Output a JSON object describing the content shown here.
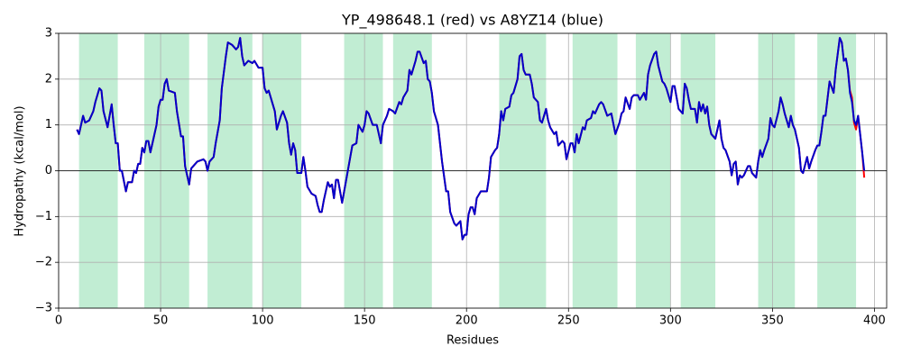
{
  "chart_data": {
    "type": "line",
    "title": "YP_498648.1 (red) vs A8YZ14 (blue)",
    "x_label": "Residues",
    "y_label": "Hydropathy (kcal/mol)",
    "xlim": [
      0,
      406
    ],
    "ylim": [
      -3,
      3
    ],
    "xticks": [
      0,
      50,
      100,
      150,
      200,
      250,
      300,
      350,
      400
    ],
    "yticks": [
      {
        "value": -3,
        "label": "−3"
      },
      {
        "value": -2,
        "label": "−2"
      },
      {
        "value": -1,
        "label": "−1"
      },
      0,
      1,
      2,
      3
    ],
    "grid": true,
    "hline": 0,
    "span_color": "#c1edd3",
    "spans": [
      [
        10,
        29
      ],
      [
        42,
        64
      ],
      [
        73,
        95
      ],
      [
        100,
        119
      ],
      [
        140,
        159
      ],
      [
        164,
        183
      ],
      [
        216,
        239
      ],
      [
        252,
        274
      ],
      [
        283,
        300
      ],
      [
        305,
        322
      ],
      [
        343,
        361
      ],
      [
        372,
        391
      ]
    ],
    "x": [
      9,
      10,
      12,
      13,
      15,
      17,
      18,
      20,
      21,
      22,
      24,
      26,
      27,
      28,
      29,
      30,
      31,
      33,
      34,
      36,
      37,
      38,
      39,
      40,
      41,
      42,
      43,
      44,
      45,
      46,
      48,
      49,
      50,
      51,
      52,
      53,
      54,
      57,
      58,
      60,
      61,
      62,
      64,
      65,
      66,
      68,
      71,
      72,
      73,
      74,
      76,
      77,
      79,
      80,
      82,
      83,
      85,
      87,
      88,
      89,
      90,
      91,
      93,
      95,
      96,
      98,
      100,
      101,
      102,
      103,
      105,
      106,
      107,
      109,
      110,
      112,
      113,
      114,
      115,
      116,
      117,
      119,
      120,
      121,
      122,
      124,
      126,
      127,
      128,
      129,
      130,
      132,
      133,
      134,
      135,
      136,
      137,
      139,
      140,
      141,
      143,
      144,
      146,
      147,
      149,
      150,
      151,
      152,
      154,
      156,
      157,
      158,
      159,
      161,
      162,
      164,
      165,
      167,
      168,
      169,
      171,
      172,
      173,
      175,
      176,
      177,
      179,
      180,
      181,
      182,
      183,
      184,
      186,
      187,
      188,
      190,
      191,
      192,
      194,
      195,
      196,
      197,
      198,
      199,
      200,
      201,
      202,
      203,
      204,
      205,
      207,
      210,
      211,
      212,
      214,
      215,
      216,
      217,
      218,
      219,
      221,
      222,
      223,
      225,
      226,
      227,
      228,
      229,
      231,
      232,
      233,
      235,
      236,
      237,
      239,
      240,
      241,
      243,
      244,
      245,
      247,
      248,
      249,
      251,
      252,
      253,
      254,
      255,
      257,
      258,
      259,
      261,
      262,
      263,
      265,
      266,
      267,
      269,
      271,
      273,
      275,
      276,
      277,
      278,
      280,
      281,
      282,
      284,
      285,
      287,
      288,
      289,
      290,
      292,
      293,
      294,
      296,
      297,
      298,
      300,
      301,
      302,
      303,
      304,
      306,
      307,
      308,
      309,
      310,
      312,
      313,
      314,
      315,
      316,
      317,
      318,
      319,
      320,
      322,
      323,
      324,
      325,
      326,
      327,
      329,
      330,
      331,
      332,
      333,
      334,
      335,
      336,
      338,
      339,
      340,
      342,
      343,
      344,
      345,
      346,
      348,
      349,
      350,
      351,
      353,
      354,
      355,
      356,
      358,
      359,
      360,
      361,
      363,
      364,
      365,
      367,
      368,
      369,
      371,
      372,
      373,
      374,
      375,
      376,
      378,
      380,
      381,
      383,
      384,
      385,
      386,
      387,
      388,
      389,
      390,
      391,
      392,
      393,
      394,
      395
    ],
    "series": [
      {
        "name": "YP_498648.1",
        "color": "#ff0000",
        "values": [
          0.9,
          0.8,
          1.2,
          1.05,
          1.1,
          1.3,
          1.5,
          1.8,
          1.75,
          1.3,
          0.95,
          1.45,
          1.0,
          0.6,
          0.6,
          0.0,
          0.0,
          -0.45,
          -0.25,
          -0.25,
          0.0,
          -0.05,
          0.15,
          0.15,
          0.5,
          0.4,
          0.65,
          0.65,
          0.4,
          0.6,
          1.0,
          1.4,
          1.55,
          1.55,
          1.9,
          2.0,
          1.75,
          1.7,
          1.3,
          0.75,
          0.75,
          0.1,
          -0.3,
          0.05,
          0.1,
          0.2,
          0.25,
          0.2,
          0.0,
          0.2,
          0.3,
          0.6,
          1.1,
          1.8,
          2.5,
          2.8,
          2.75,
          2.65,
          2.7,
          2.9,
          2.5,
          2.3,
          2.4,
          2.35,
          2.4,
          2.25,
          2.25,
          1.8,
          1.7,
          1.75,
          1.45,
          1.3,
          0.9,
          1.2,
          1.3,
          1.05,
          0.6,
          0.35,
          0.6,
          0.45,
          -0.05,
          -0.05,
          0.3,
          0.0,
          -0.35,
          -0.5,
          -0.55,
          -0.75,
          -0.9,
          -0.9,
          -0.65,
          -0.25,
          -0.35,
          -0.3,
          -0.6,
          -0.2,
          -0.2,
          -0.7,
          -0.45,
          -0.2,
          0.3,
          0.55,
          0.6,
          1.0,
          0.85,
          1.0,
          1.3,
          1.25,
          1.0,
          1.0,
          0.8,
          0.6,
          1.0,
          1.2,
          1.35,
          1.3,
          1.25,
          1.5,
          1.45,
          1.6,
          1.75,
          2.2,
          2.1,
          2.4,
          2.6,
          2.6,
          2.35,
          2.4,
          2.0,
          1.95,
          1.7,
          1.3,
          1.0,
          0.6,
          0.2,
          -0.45,
          -0.45,
          -0.9,
          -1.15,
          -1.2,
          -1.15,
          -1.1,
          -1.5,
          -1.4,
          -1.4,
          -0.95,
          -0.8,
          -0.8,
          -0.95,
          -0.6,
          -0.45,
          -0.45,
          -0.15,
          0.3,
          0.45,
          0.5,
          0.8,
          1.3,
          1.1,
          1.35,
          1.4,
          1.65,
          1.7,
          2.0,
          2.5,
          2.55,
          2.2,
          2.1,
          2.1,
          1.9,
          1.6,
          1.5,
          1.1,
          1.05,
          1.35,
          1.1,
          0.95,
          0.8,
          0.85,
          0.55,
          0.65,
          0.6,
          0.25,
          0.6,
          0.6,
          0.4,
          0.8,
          0.6,
          0.95,
          0.9,
          1.1,
          1.15,
          1.3,
          1.25,
          1.45,
          1.5,
          1.45,
          1.2,
          1.25,
          0.8,
          1.05,
          1.25,
          1.3,
          1.6,
          1.35,
          1.6,
          1.65,
          1.65,
          1.55,
          1.7,
          1.55,
          2.1,
          2.3,
          2.55,
          2.6,
          2.3,
          1.95,
          1.9,
          1.8,
          1.5,
          1.85,
          1.85,
          1.6,
          1.35,
          1.25,
          1.9,
          1.8,
          1.55,
          1.35,
          1.35,
          1.05,
          1.5,
          1.3,
          1.45,
          1.25,
          1.4,
          1.0,
          0.8,
          0.7,
          0.9,
          1.1,
          0.7,
          0.5,
          0.45,
          0.2,
          -0.1,
          0.15,
          0.2,
          -0.3,
          -0.1,
          -0.15,
          -0.1,
          0.1,
          0.1,
          -0.05,
          -0.15,
          0.2,
          0.45,
          0.3,
          0.45,
          0.7,
          1.15,
          1.0,
          0.95,
          1.3,
          1.6,
          1.45,
          1.25,
          0.95,
          1.2,
          1.0,
          0.9,
          0.5,
          0.0,
          -0.05,
          0.3,
          0.05,
          0.2,
          0.45,
          0.55,
          0.55,
          0.85,
          1.2,
          1.2,
          1.95,
          1.7,
          2.2,
          2.9,
          2.8,
          2.4,
          2.45,
          2.2,
          1.75,
          1.6,
          1.05,
          0.9,
          1.2,
          0.8,
          0.4,
          -0.15
        ]
      },
      {
        "name": "A8YZ14",
        "color": "#0000cc",
        "values": [
          0.9,
          0.8,
          1.2,
          1.05,
          1.1,
          1.3,
          1.5,
          1.8,
          1.75,
          1.3,
          0.95,
          1.45,
          1.0,
          0.6,
          0.6,
          0.0,
          0.0,
          -0.45,
          -0.25,
          -0.25,
          0.0,
          -0.05,
          0.15,
          0.15,
          0.5,
          0.4,
          0.65,
          0.65,
          0.4,
          0.6,
          1.0,
          1.4,
          1.55,
          1.55,
          1.9,
          2.0,
          1.75,
          1.7,
          1.3,
          0.75,
          0.75,
          0.1,
          -0.3,
          0.05,
          0.1,
          0.2,
          0.25,
          0.2,
          0.0,
          0.2,
          0.3,
          0.6,
          1.1,
          1.8,
          2.5,
          2.8,
          2.75,
          2.65,
          2.7,
          2.9,
          2.5,
          2.3,
          2.4,
          2.35,
          2.4,
          2.25,
          2.25,
          1.8,
          1.7,
          1.75,
          1.45,
          1.3,
          0.9,
          1.2,
          1.3,
          1.05,
          0.6,
          0.35,
          0.6,
          0.45,
          -0.05,
          -0.05,
          0.3,
          0.0,
          -0.35,
          -0.5,
          -0.55,
          -0.75,
          -0.9,
          -0.9,
          -0.65,
          -0.25,
          -0.35,
          -0.3,
          -0.6,
          -0.2,
          -0.2,
          -0.7,
          -0.45,
          -0.2,
          0.3,
          0.55,
          0.6,
          1.0,
          0.85,
          1.0,
          1.3,
          1.25,
          1.0,
          1.0,
          0.8,
          0.6,
          1.0,
          1.2,
          1.35,
          1.3,
          1.25,
          1.5,
          1.45,
          1.6,
          1.75,
          2.2,
          2.1,
          2.4,
          2.6,
          2.6,
          2.35,
          2.4,
          2.0,
          1.95,
          1.7,
          1.3,
          1.0,
          0.6,
          0.2,
          -0.45,
          -0.45,
          -0.9,
          -1.15,
          -1.2,
          -1.15,
          -1.1,
          -1.5,
          -1.4,
          -1.4,
          -0.95,
          -0.8,
          -0.8,
          -0.95,
          -0.6,
          -0.45,
          -0.45,
          -0.15,
          0.3,
          0.45,
          0.5,
          0.8,
          1.3,
          1.1,
          1.35,
          1.4,
          1.65,
          1.7,
          2.0,
          2.5,
          2.55,
          2.2,
          2.1,
          2.1,
          1.9,
          1.6,
          1.5,
          1.1,
          1.05,
          1.35,
          1.1,
          0.95,
          0.8,
          0.85,
          0.55,
          0.65,
          0.6,
          0.25,
          0.6,
          0.6,
          0.4,
          0.8,
          0.6,
          0.95,
          0.9,
          1.1,
          1.15,
          1.3,
          1.25,
          1.45,
          1.5,
          1.45,
          1.2,
          1.25,
          0.8,
          1.05,
          1.25,
          1.3,
          1.6,
          1.35,
          1.6,
          1.65,
          1.65,
          1.55,
          1.7,
          1.55,
          2.1,
          2.3,
          2.55,
          2.6,
          2.3,
          1.95,
          1.9,
          1.8,
          1.5,
          1.85,
          1.85,
          1.6,
          1.35,
          1.25,
          1.9,
          1.8,
          1.55,
          1.35,
          1.35,
          1.05,
          1.5,
          1.3,
          1.45,
          1.25,
          1.4,
          1.0,
          0.8,
          0.7,
          0.9,
          1.1,
          0.7,
          0.5,
          0.45,
          0.2,
          -0.1,
          0.15,
          0.2,
          -0.3,
          -0.1,
          -0.15,
          -0.1,
          0.1,
          0.1,
          -0.05,
          -0.15,
          0.2,
          0.45,
          0.3,
          0.45,
          0.7,
          1.15,
          1.0,
          0.95,
          1.3,
          1.6,
          1.45,
          1.25,
          0.95,
          1.2,
          1.0,
          0.9,
          0.5,
          0.0,
          -0.05,
          0.3,
          0.05,
          0.2,
          0.45,
          0.55,
          0.55,
          0.85,
          1.2,
          1.2,
          1.95,
          1.7,
          2.2,
          2.9,
          2.8,
          2.4,
          2.45,
          2.2,
          1.7,
          1.5,
          1.1,
          1.0,
          1.2,
          0.8,
          0.4,
          0.0
        ]
      }
    ]
  }
}
